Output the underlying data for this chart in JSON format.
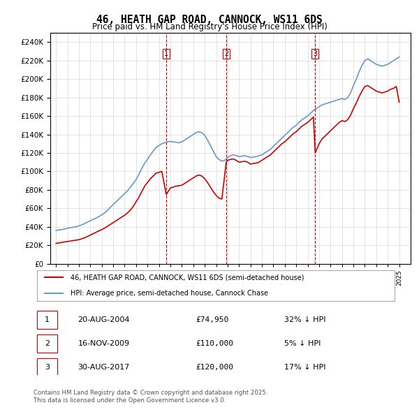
{
  "title": "46, HEATH GAP ROAD, CANNOCK, WS11 6DS",
  "subtitle": "Price paid vs. HM Land Registry's House Price Index (HPI)",
  "legend_label_red": "46, HEATH GAP ROAD, CANNOCK, WS11 6DS (semi-detached house)",
  "legend_label_blue": "HPI: Average price, semi-detached house, Cannock Chase",
  "footer_line1": "Contains HM Land Registry data © Crown copyright and database right 2025.",
  "footer_line2": "This data is licensed under the Open Government Licence v3.0.",
  "transactions": [
    {
      "num": 1,
      "date": "20-AUG-2004",
      "price": "£74,950",
      "pct": "32% ↓ HPI",
      "year": 2004.64
    },
    {
      "num": 2,
      "date": "16-NOV-2009",
      "price": "£110,000",
      "pct": "5% ↓ HPI",
      "year": 2009.88
    },
    {
      "num": 3,
      "date": "30-AUG-2017",
      "price": "£120,000",
      "pct": "17% ↓ HPI",
      "year": 2017.66
    }
  ],
  "hpi_color": "#6699cc",
  "price_color": "#cc0000",
  "marker_dashed_color": "#cc0000",
  "ylim": [
    0,
    250000
  ],
  "yticks": [
    0,
    20000,
    40000,
    60000,
    80000,
    100000,
    120000,
    140000,
    160000,
    180000,
    200000,
    220000,
    240000
  ],
  "xlim_start": 1994.5,
  "xlim_end": 2026.0,
  "hpi_data": {
    "years": [
      1995.0,
      1995.25,
      1995.5,
      1995.75,
      1996.0,
      1996.25,
      1996.5,
      1996.75,
      1997.0,
      1997.25,
      1997.5,
      1997.75,
      1998.0,
      1998.25,
      1998.5,
      1998.75,
      1999.0,
      1999.25,
      1999.5,
      1999.75,
      2000.0,
      2000.25,
      2000.5,
      2000.75,
      2001.0,
      2001.25,
      2001.5,
      2001.75,
      2002.0,
      2002.25,
      2002.5,
      2002.75,
      2003.0,
      2003.25,
      2003.5,
      2003.75,
      2004.0,
      2004.25,
      2004.5,
      2004.75,
      2005.0,
      2005.25,
      2005.5,
      2005.75,
      2006.0,
      2006.25,
      2006.5,
      2006.75,
      2007.0,
      2007.25,
      2007.5,
      2007.75,
      2008.0,
      2008.25,
      2008.5,
      2008.75,
      2009.0,
      2009.25,
      2009.5,
      2009.75,
      2010.0,
      2010.25,
      2010.5,
      2010.75,
      2011.0,
      2011.25,
      2011.5,
      2011.75,
      2012.0,
      2012.25,
      2012.5,
      2012.75,
      2013.0,
      2013.25,
      2013.5,
      2013.75,
      2014.0,
      2014.25,
      2014.5,
      2014.75,
      2015.0,
      2015.25,
      2015.5,
      2015.75,
      2016.0,
      2016.25,
      2016.5,
      2016.75,
      2017.0,
      2017.25,
      2017.5,
      2017.75,
      2018.0,
      2018.25,
      2018.5,
      2018.75,
      2019.0,
      2019.25,
      2019.5,
      2019.75,
      2020.0,
      2020.25,
      2020.5,
      2020.75,
      2021.0,
      2021.25,
      2021.5,
      2021.75,
      2022.0,
      2022.25,
      2022.5,
      2022.75,
      2023.0,
      2023.25,
      2023.5,
      2023.75,
      2024.0,
      2024.25,
      2024.5,
      2024.75,
      2025.0
    ],
    "values": [
      36000,
      36500,
      37000,
      37500,
      38500,
      39000,
      39500,
      40000,
      41000,
      42000,
      43500,
      45000,
      46500,
      48000,
      49500,
      51000,
      53000,
      55000,
      58000,
      61000,
      64000,
      67000,
      70000,
      73000,
      76000,
      79000,
      83000,
      87000,
      91000,
      97000,
      103000,
      109000,
      113000,
      118000,
      122000,
      126000,
      128000,
      130000,
      131000,
      132000,
      132500,
      132000,
      131500,
      131000,
      132000,
      134000,
      136000,
      138000,
      140000,
      142000,
      143000,
      142000,
      139000,
      134000,
      128000,
      122000,
      116000,
      113000,
      111000,
      112000,
      115000,
      117000,
      118000,
      117000,
      116000,
      116500,
      117000,
      116000,
      115000,
      115500,
      116000,
      117000,
      118000,
      120000,
      122000,
      124000,
      127000,
      130000,
      133000,
      136000,
      139000,
      142000,
      145000,
      148000,
      150000,
      153000,
      156000,
      158000,
      160000,
      163000,
      166000,
      168000,
      170000,
      172000,
      173000,
      174000,
      175000,
      176000,
      177000,
      178000,
      179000,
      178000,
      180000,
      185000,
      193000,
      200000,
      208000,
      215000,
      220000,
      222000,
      220000,
      218000,
      216000,
      215000,
      214000,
      215000,
      216000,
      218000,
      220000,
      222000,
      224000
    ]
  },
  "price_data": {
    "years": [
      1995.0,
      1995.25,
      1995.5,
      1995.75,
      1996.0,
      1996.25,
      1996.5,
      1996.75,
      1997.0,
      1997.25,
      1997.5,
      1997.75,
      1998.0,
      1998.25,
      1998.5,
      1998.75,
      1999.0,
      1999.25,
      1999.5,
      1999.75,
      2000.0,
      2000.25,
      2000.5,
      2000.75,
      2001.0,
      2001.25,
      2001.5,
      2001.75,
      2002.0,
      2002.25,
      2002.5,
      2002.75,
      2003.0,
      2003.25,
      2003.5,
      2003.75,
      2004.0,
      2004.25,
      2004.64,
      2004.9,
      2005.0,
      2005.25,
      2005.5,
      2005.75,
      2006.0,
      2006.25,
      2006.5,
      2006.75,
      2007.0,
      2007.25,
      2007.5,
      2007.75,
      2008.0,
      2008.25,
      2008.5,
      2008.75,
      2009.0,
      2009.25,
      2009.5,
      2009.88,
      2010.0,
      2010.25,
      2010.5,
      2010.75,
      2011.0,
      2011.25,
      2011.5,
      2011.75,
      2012.0,
      2012.25,
      2012.5,
      2012.75,
      2013.0,
      2013.25,
      2013.5,
      2013.75,
      2014.0,
      2014.25,
      2014.5,
      2014.75,
      2015.0,
      2015.25,
      2015.5,
      2015.75,
      2016.0,
      2016.25,
      2016.5,
      2016.75,
      2017.0,
      2017.25,
      2017.5,
      2017.66,
      2018.0,
      2018.25,
      2018.5,
      2018.75,
      2019.0,
      2019.25,
      2019.5,
      2019.75,
      2020.0,
      2020.25,
      2020.5,
      2020.75,
      2021.0,
      2021.25,
      2021.5,
      2021.75,
      2022.0,
      2022.25,
      2022.5,
      2022.75,
      2023.0,
      2023.25,
      2023.5,
      2023.75,
      2024.0,
      2024.25,
      2024.5,
      2024.75,
      2025.0
    ],
    "values": [
      22000,
      22500,
      23000,
      23500,
      24000,
      24500,
      25000,
      25500,
      26000,
      27000,
      28000,
      29500,
      31000,
      32500,
      34000,
      35500,
      37000,
      38500,
      40500,
      42500,
      44500,
      46500,
      48500,
      50500,
      52500,
      55000,
      58000,
      62000,
      67000,
      72000,
      78000,
      84000,
      88000,
      92000,
      95000,
      98000,
      99000,
      100000,
      74950,
      80000,
      82000,
      83000,
      84000,
      84500,
      85000,
      87000,
      89000,
      91000,
      93000,
      95000,
      96000,
      95000,
      92000,
      88000,
      83000,
      78000,
      74000,
      71000,
      70000,
      110000,
      112000,
      113000,
      113500,
      112000,
      110000,
      110500,
      111000,
      110000,
      108000,
      108500,
      109000,
      110000,
      112000,
      114000,
      116000,
      118000,
      121000,
      124000,
      127000,
      130000,
      132000,
      135000,
      138000,
      141000,
      143000,
      146000,
      149000,
      151000,
      153000,
      156000,
      159000,
      120000,
      130000,
      135000,
      138000,
      141000,
      144000,
      147000,
      150000,
      153000,
      155000,
      154000,
      156000,
      161000,
      168000,
      174000,
      181000,
      187000,
      192000,
      193000,
      191000,
      189000,
      187000,
      186000,
      185000,
      186000,
      187000,
      189000,
      190000,
      192000,
      175000
    ]
  }
}
